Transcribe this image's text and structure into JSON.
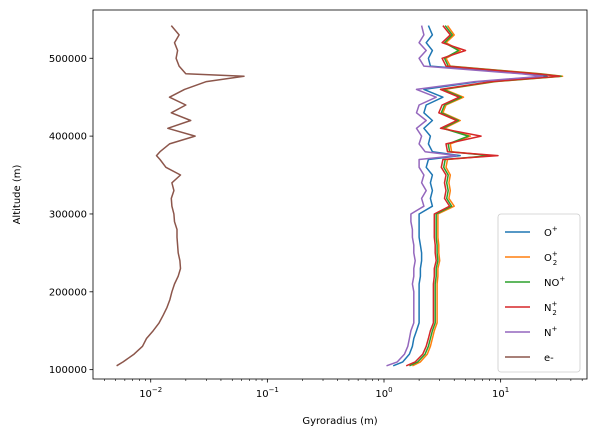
{
  "chart_data": {
    "type": "line",
    "title": "",
    "xlabel": "Gyroradius (m)",
    "ylabel": "Altitude (m)",
    "xscale": "log",
    "xlim": [
      0.0032,
      55
    ],
    "ylim": [
      88000,
      562000
    ],
    "x_ticks": [
      {
        "value": 0.01,
        "base": "10",
        "exp": "−2"
      },
      {
        "value": 0.1,
        "base": "10",
        "exp": "−1"
      },
      {
        "value": 1,
        "base": "10",
        "exp": "0"
      },
      {
        "value": 10,
        "base": "10",
        "exp": "1"
      }
    ],
    "y_ticks": [
      {
        "value": 100000,
        "label": "100000"
      },
      {
        "value": 200000,
        "label": "200000"
      },
      {
        "value": 300000,
        "label": "300000"
      },
      {
        "value": 400000,
        "label": "400000"
      },
      {
        "value": 500000,
        "label": "500000"
      }
    ],
    "grid": false,
    "legend_position": "lower right",
    "altitudes": [
      105000,
      110000,
      120000,
      130000,
      140000,
      150000,
      160000,
      170000,
      180000,
      190000,
      200000,
      210000,
      220000,
      230000,
      240000,
      250000,
      260000,
      270000,
      280000,
      290000,
      300000,
      310000,
      320000,
      330000,
      340000,
      350000,
      360000,
      370000,
      375000,
      380000,
      390000,
      400000,
      410000,
      420000,
      430000,
      440000,
      450000,
      460000,
      470000,
      477000,
      480000,
      490000,
      500000,
      510000,
      520000,
      530000,
      542000
    ],
    "series": [
      {
        "name": "O",
        "sup": "+",
        "sub": "",
        "color": "#1f77b4",
        "values": [
          1.2,
          1.45,
          1.65,
          1.75,
          1.8,
          1.9,
          2.0,
          2.0,
          2.0,
          2.0,
          2.0,
          2.0,
          2.05,
          2.05,
          2.1,
          2.1,
          2.05,
          2.0,
          2.0,
          2.0,
          2.0,
          2.6,
          2.5,
          2.6,
          2.5,
          2.6,
          2.3,
          2.4,
          4.5,
          2.6,
          2.4,
          2.5,
          2.2,
          2.6,
          2.2,
          2.3,
          3.2,
          2.2,
          6.5,
          25,
          16,
          2.5,
          2.4,
          2.6,
          2.3,
          2.6,
          2.4
        ]
      },
      {
        "name": "O",
        "sup": "+",
        "sub": "2",
        "color": "#ff7f0e",
        "values": [
          1.75,
          2.05,
          2.35,
          2.5,
          2.6,
          2.7,
          2.85,
          2.85,
          2.85,
          2.85,
          2.85,
          2.85,
          2.9,
          2.9,
          3.0,
          2.95,
          2.95,
          2.9,
          2.9,
          2.9,
          2.9,
          4.0,
          3.6,
          3.7,
          3.6,
          3.7,
          3.4,
          3.5,
          8.5,
          3.8,
          3.7,
          5.5,
          3.3,
          4.5,
          3.2,
          3.4,
          4.8,
          3.3,
          9.0,
          34,
          22,
          3.7,
          3.4,
          4.5,
          3.4,
          4.0,
          3.5
        ]
      },
      {
        "name": "NO",
        "sup": "+",
        "sub": "",
        "color": "#2ca02c",
        "values": [
          1.65,
          1.95,
          2.25,
          2.4,
          2.5,
          2.6,
          2.75,
          2.75,
          2.75,
          2.75,
          2.75,
          2.75,
          2.8,
          2.8,
          2.9,
          2.85,
          2.85,
          2.8,
          2.8,
          2.8,
          2.8,
          3.8,
          3.45,
          3.55,
          3.45,
          3.55,
          3.25,
          3.35,
          8.2,
          3.65,
          3.55,
          5.3,
          3.2,
          4.35,
          3.1,
          3.3,
          4.6,
          3.2,
          8.7,
          33,
          21,
          3.55,
          3.3,
          4.35,
          3.3,
          3.85,
          3.35
        ]
      },
      {
        "name": "N",
        "sup": "+",
        "sub": "2",
        "color": "#d62728",
        "values": [
          1.55,
          1.85,
          2.15,
          2.3,
          2.4,
          2.5,
          2.65,
          2.65,
          2.65,
          2.65,
          2.65,
          2.65,
          2.7,
          2.7,
          2.8,
          2.75,
          2.75,
          2.7,
          2.7,
          2.7,
          2.7,
          3.65,
          3.3,
          3.4,
          3.3,
          3.4,
          3.1,
          3.2,
          9.5,
          3.5,
          3.4,
          6.8,
          3.05,
          4.2,
          2.95,
          3.15,
          4.4,
          3.05,
          8.3,
          32,
          20,
          3.4,
          3.15,
          5.0,
          3.15,
          3.7,
          3.2
        ]
      },
      {
        "name": "N",
        "sup": "+",
        "sub": "",
        "color": "#9467bd",
        "values": [
          1.05,
          1.3,
          1.5,
          1.6,
          1.65,
          1.7,
          1.8,
          1.8,
          1.8,
          1.8,
          1.8,
          1.75,
          1.8,
          1.8,
          1.85,
          1.8,
          1.8,
          1.75,
          1.75,
          1.7,
          1.7,
          2.2,
          2.1,
          2.3,
          2.1,
          2.2,
          2.0,
          2.0,
          4.2,
          2.25,
          2.0,
          2.1,
          1.9,
          2.3,
          1.9,
          2.0,
          2.8,
          1.9,
          6.0,
          23,
          15,
          2.2,
          2.0,
          2.3,
          2.0,
          2.2,
          2.1
        ]
      },
      {
        "name": "e-",
        "sup": "",
        "sub": "",
        "color": "#8c564b",
        "values": [
          0.0051,
          0.0058,
          0.0072,
          0.0085,
          0.0092,
          0.0105,
          0.0118,
          0.0128,
          0.0138,
          0.0146,
          0.0152,
          0.016,
          0.0172,
          0.018,
          0.0178,
          0.0172,
          0.017,
          0.0168,
          0.0168,
          0.016,
          0.0158,
          0.0152,
          0.015,
          0.0158,
          0.0152,
          0.018,
          0.0135,
          0.012,
          0.0112,
          0.012,
          0.0145,
          0.024,
          0.014,
          0.022,
          0.015,
          0.02,
          0.0145,
          0.0195,
          0.03,
          0.063,
          0.02,
          0.0175,
          0.0165,
          0.017,
          0.016,
          0.0175,
          0.015
        ]
      }
    ]
  }
}
